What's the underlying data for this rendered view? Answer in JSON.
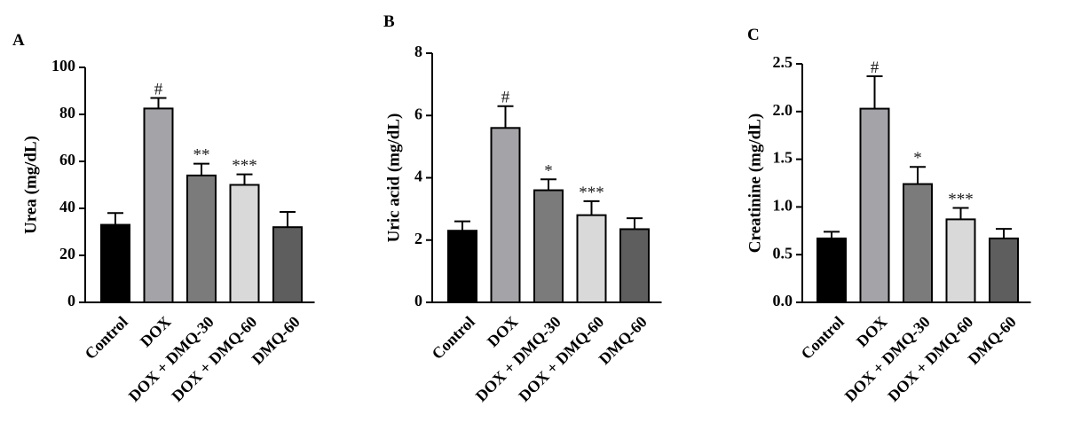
{
  "chart_data": [
    {
      "type": "bar",
      "panel": "A",
      "ylabel": "Urea (mg/dL)",
      "ylim": [
        0,
        100
      ],
      "yticks": [
        0,
        20,
        40,
        60,
        80,
        100
      ],
      "categories": [
        "Control",
        "DOX",
        "DOX + DMQ-30",
        "DOX + DMQ-60",
        "DMQ-60"
      ],
      "values": [
        33,
        82.5,
        54,
        50,
        32
      ],
      "errors": [
        5,
        4.5,
        5,
        4.5,
        6.5
      ],
      "annotations": [
        "",
        "#",
        "**",
        "***",
        ""
      ],
      "colors": [
        "#000000",
        "#a3a3a8",
        "#7b7b7b",
        "#d9d9d9",
        "#5e5e5e"
      ],
      "grid": false
    },
    {
      "type": "bar",
      "panel": "B",
      "ylabel": "Uric acid (mg/dL)",
      "ylim": [
        0,
        8
      ],
      "yticks": [
        0,
        2,
        4,
        6,
        8
      ],
      "categories": [
        "Control",
        "DOX",
        "DOX + DMQ-30",
        "DOX + DMQ-60",
        "DMQ-60"
      ],
      "values": [
        2.3,
        5.6,
        3.6,
        2.8,
        2.35
      ],
      "errors": [
        0.3,
        0.7,
        0.35,
        0.45,
        0.35
      ],
      "annotations": [
        "",
        "#",
        "*",
        "***",
        ""
      ],
      "colors": [
        "#000000",
        "#a3a3a8",
        "#7b7b7b",
        "#d9d9d9",
        "#5e5e5e"
      ],
      "grid": false
    },
    {
      "type": "bar",
      "panel": "C",
      "ylabel": "Creatinine (mg/dL)",
      "ylim": [
        0,
        2.5
      ],
      "yticks": [
        "0.0",
        "0.5",
        "1.0",
        "1.5",
        "2.0",
        "2.5"
      ],
      "categories": [
        "Control",
        "DOX",
        "DOX + DMQ-30",
        "DOX + DMQ-60",
        "DMQ-60"
      ],
      "values": [
        0.67,
        2.03,
        1.24,
        0.87,
        0.67
      ],
      "errors": [
        0.07,
        0.34,
        0.18,
        0.12,
        0.1
      ],
      "annotations": [
        "",
        "#",
        "*",
        "***",
        ""
      ],
      "colors": [
        "#000000",
        "#a3a3a8",
        "#7b7b7b",
        "#d9d9d9",
        "#5e5e5e"
      ],
      "grid": false
    }
  ]
}
